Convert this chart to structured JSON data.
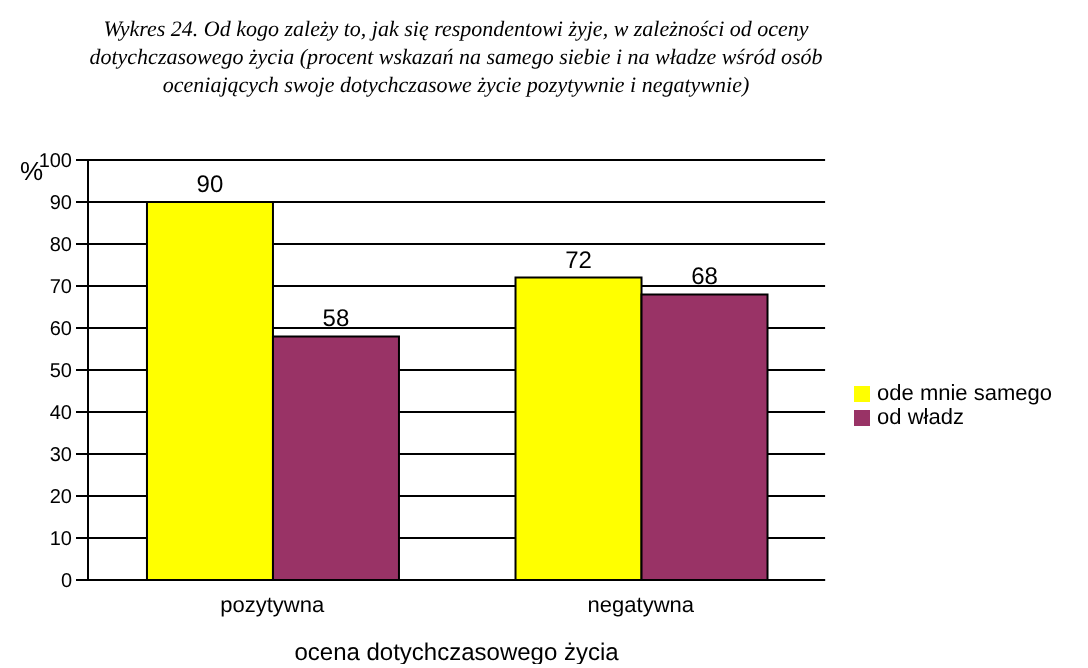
{
  "chart_data": {
    "type": "bar",
    "title": "Wykres 24. Od kogo zależy to, jak się respondentowi żyje, w zależności od oceny dotychczasowego życia (procent wskazań na samego siebie i na władze wśród osób oceniających swoje dotychczasowe życie pozytywnie i negatywnie)",
    "xlabel": "ocena dotychczasowego życia",
    "ylabel": "%",
    "categories": [
      "pozytywna",
      "negatywna"
    ],
    "series": [
      {
        "name": "ode mnie samego",
        "color": "#ffff00",
        "values": [
          90,
          72
        ]
      },
      {
        "name": "od władz",
        "color": "#993366",
        "values": [
          58,
          68
        ]
      }
    ],
    "ylim": [
      0,
      100
    ],
    "yticks": [
      0,
      10,
      20,
      30,
      40,
      50,
      60,
      70,
      80,
      90,
      100
    ],
    "grid": "y",
    "legend": "right",
    "data_labels": true
  }
}
